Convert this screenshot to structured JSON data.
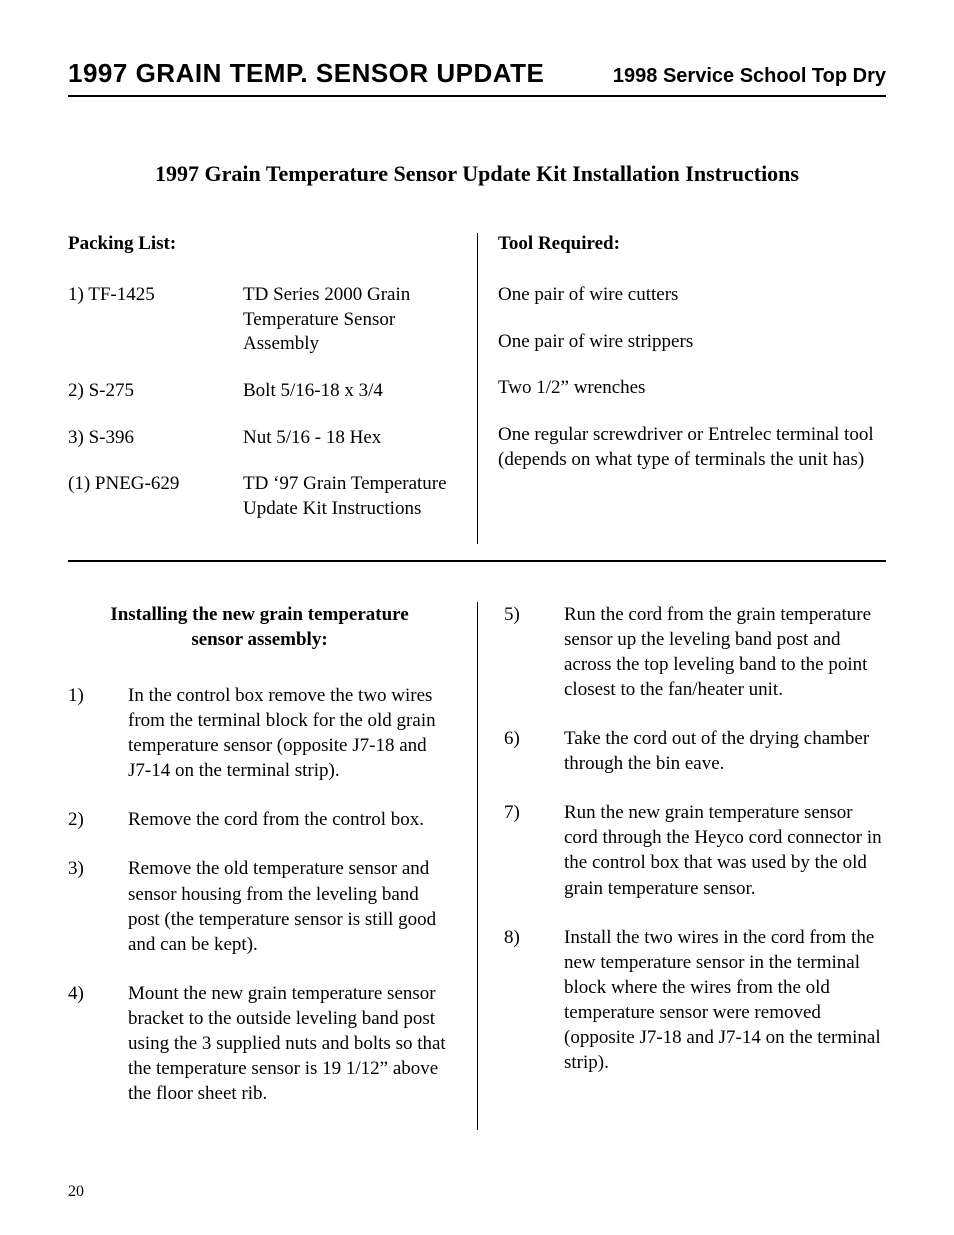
{
  "header": {
    "left": "1997 GRAIN TEMP. SENSOR UPDATE",
    "right": "1998 Service School Top Dry"
  },
  "subtitle": "1997 Grain Temperature Sensor Update Kit Installation Instructions",
  "packing": {
    "title": "Packing List:",
    "items": [
      {
        "key": "1) TF-1425",
        "desc": "TD Series 2000 Grain Temperature Sensor Assembly"
      },
      {
        "key": "2) S-275",
        "desc": "Bolt 5/16-18 x 3/4"
      },
      {
        "key": "3) S-396",
        "desc": "Nut 5/16 - 18 Hex"
      },
      {
        "key": "(1) PNEG-629",
        "desc": "TD ‘97 Grain Temperature Update Kit Instructions"
      }
    ]
  },
  "tools": {
    "title": "Tool Required:",
    "items": [
      "One pair of wire cutters",
      "One pair of wire strippers",
      "Two 1/2” wrenches",
      "One regular screwdriver or Entrelec terminal tool (depends on what type of terminals the unit has)"
    ]
  },
  "install": {
    "title": "Installing the new grain temperature sensor assembly:",
    "steps_left": [
      {
        "n": "1)",
        "t": "In the control box remove the two wires from the terminal block for the old grain temperature sensor (opposite J7-18 and J7-14 on the terminal strip)."
      },
      {
        "n": "2)",
        "t": "Remove the cord from the control box."
      },
      {
        "n": "3)",
        "t": "Remove the old temperature sensor and sensor housing from the leveling band post (the temperature sensor is still good and can be kept)."
      },
      {
        "n": "4)",
        "t": "Mount the new grain temperature sensor bracket to the outside leveling band post using the 3 supplied nuts and bolts so that the temperature sensor is 19 1/12” above the floor sheet rib."
      }
    ],
    "steps_right": [
      {
        "n": "5)",
        "t": "Run the cord from the grain temperature sensor up the leveling band post and across the top leveling band to the point closest to the fan/heater unit."
      },
      {
        "n": "6)",
        "t": "Take the cord out of the drying chamber through the bin eave."
      },
      {
        "n": "7)",
        "t": "Run the new grain temperature sensor cord through the Heyco cord connector in the control box that was used by the old grain temperature sensor."
      },
      {
        "n": "8)",
        "t": "Install the two wires in the cord from the new temperature sensor in the terminal block where the wires from the old temperature sensor were removed (opposite J7-18 and J7-14 on the terminal strip)."
      }
    ]
  },
  "page_number": "20"
}
